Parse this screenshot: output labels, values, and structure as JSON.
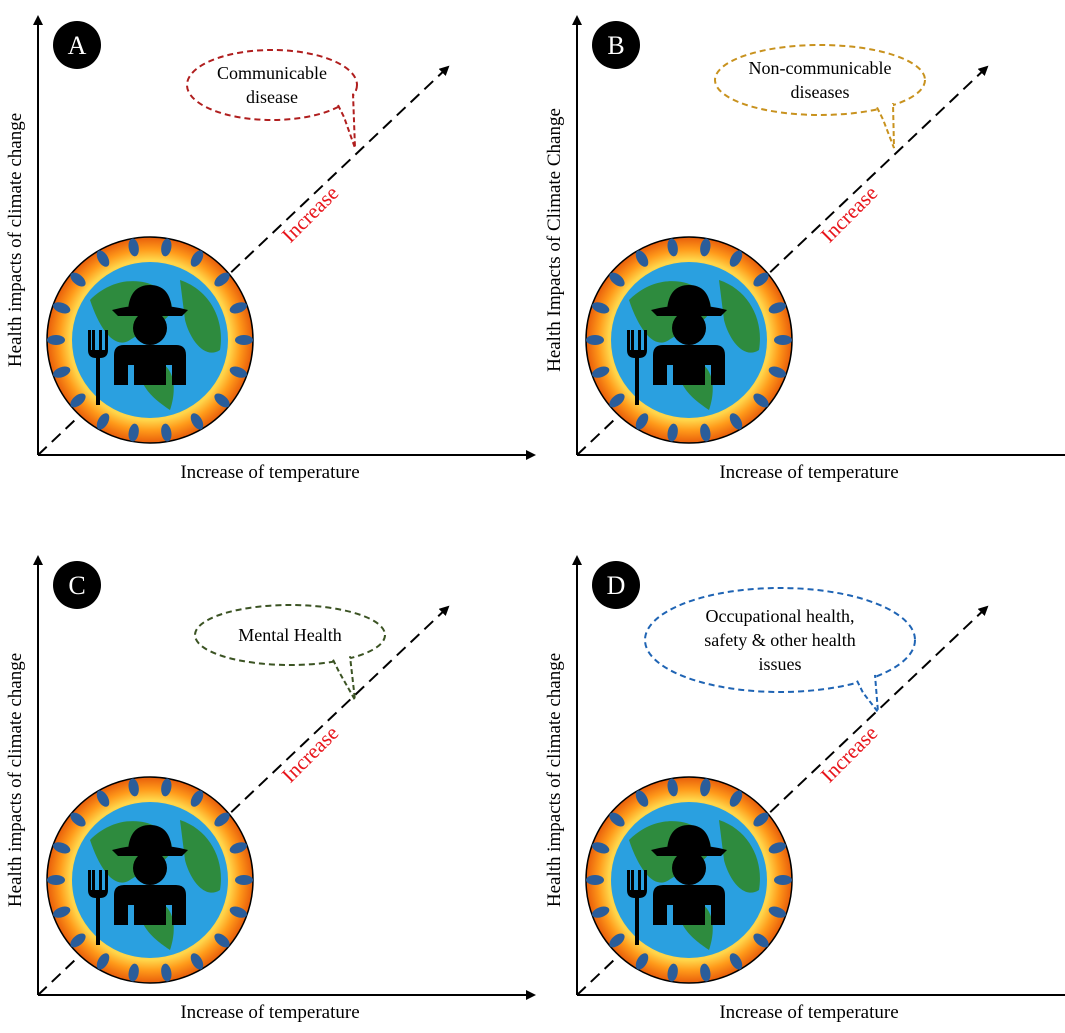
{
  "panels": [
    {
      "letter": "A",
      "y_axis_label": "Health impacts of climate change",
      "x_axis_label": "Increase of temperature",
      "arrow_label": "Increase",
      "bubble_lines": [
        "Communicable",
        "disease"
      ],
      "bubble_color": "#b01e1e"
    },
    {
      "letter": "B",
      "y_axis_label": "Health Impacts of Climate Change",
      "x_axis_label": "Increase of temperature",
      "arrow_label": "Increase",
      "bubble_lines": [
        "Non-communicable",
        "diseases"
      ],
      "bubble_color": "#c8921e"
    },
    {
      "letter": "C",
      "y_axis_label": "Health impacts of climate change",
      "x_axis_label": "Increase of temperature",
      "arrow_label": "Increase",
      "bubble_lines": [
        "Mental Health"
      ],
      "bubble_color": "#3b5323"
    },
    {
      "letter": "D",
      "y_axis_label": "Health impacts of climate change",
      "x_axis_label": "Increase of temperature",
      "arrow_label": "Increase",
      "bubble_lines": [
        "Occupational health,",
        "safety & other health",
        "issues"
      ],
      "bubble_color": "#1f64b4"
    }
  ]
}
